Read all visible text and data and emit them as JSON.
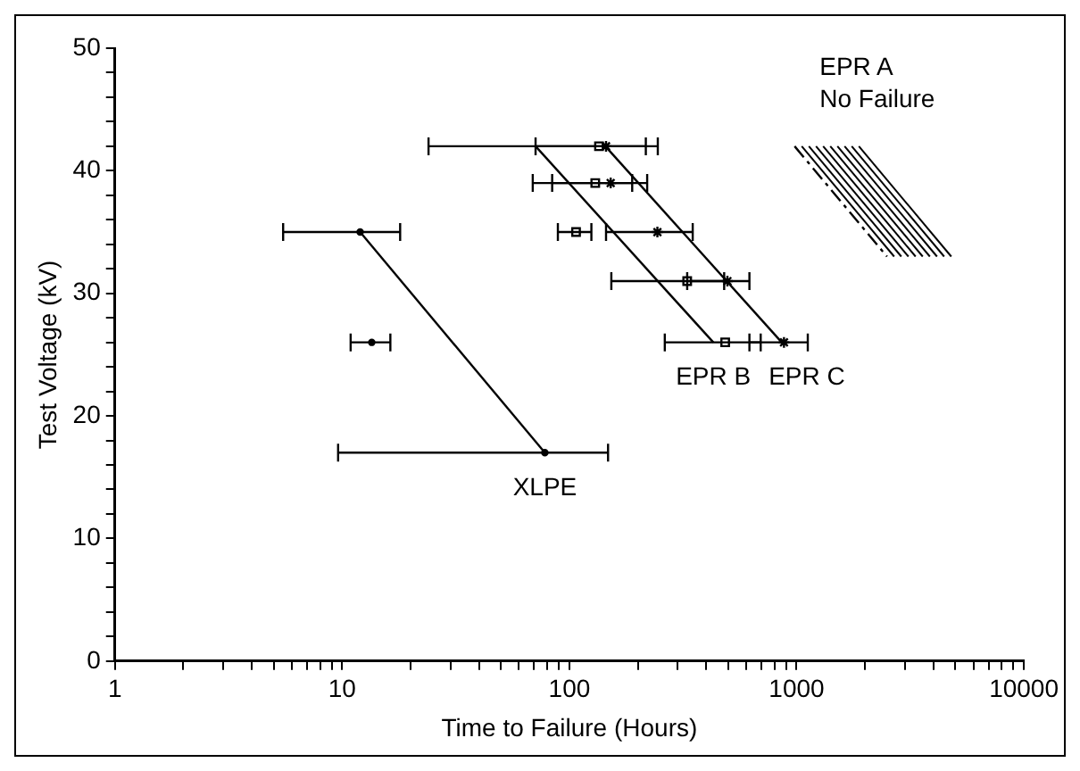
{
  "chart_data": {
    "type": "scatter",
    "xlabel": "Time to Failure (Hours)",
    "ylabel": "Test Voltage (kV)",
    "log": "x",
    "grid": false,
    "legend": false,
    "xlim": [
      1,
      10000
    ],
    "xticks": [
      1,
      {
        "value": 2,
        "label": null
      },
      {
        "value": 3,
        "label": null
      },
      {
        "value": 4,
        "label": null
      },
      {
        "value": 5,
        "label": null
      },
      {
        "value": 6,
        "label": null
      },
      {
        "value": 7,
        "label": null
      },
      {
        "value": 8,
        "label": null
      },
      {
        "value": 9,
        "label": null
      },
      10,
      {
        "value": 20,
        "label": null
      },
      {
        "value": 30,
        "label": null
      },
      {
        "value": 40,
        "label": null
      },
      {
        "value": 50,
        "label": null
      },
      {
        "value": 60,
        "label": null
      },
      {
        "value": 70,
        "label": null
      },
      {
        "value": 80,
        "label": null
      },
      {
        "value": 90,
        "label": null
      },
      100,
      {
        "value": 200,
        "label": null
      },
      {
        "value": 300,
        "label": null
      },
      {
        "value": 400,
        "label": null
      },
      {
        "value": 500,
        "label": null
      },
      {
        "value": 600,
        "label": null
      },
      {
        "value": 700,
        "label": null
      },
      {
        "value": 800,
        "label": null
      },
      {
        "value": 900,
        "label": null
      },
      1000,
      {
        "value": 2000,
        "label": null
      },
      {
        "value": 3000,
        "label": null
      },
      {
        "value": 4000,
        "label": null
      },
      {
        "value": 5000,
        "label": null
      },
      {
        "value": 6000,
        "label": null
      },
      {
        "value": 7000,
        "label": null
      },
      {
        "value": 8000,
        "label": null
      },
      {
        "value": 9000,
        "label": null
      },
      10000
    ],
    "ylim": [
      0,
      50
    ],
    "yticks": [
      0,
      {
        "value": 2,
        "label": null
      },
      {
        "value": 4,
        "label": null
      },
      {
        "value": 6,
        "label": null
      },
      {
        "value": 8,
        "label": null
      },
      10,
      {
        "value": 12,
        "label": null
      },
      {
        "value": 14,
        "label": null
      },
      {
        "value": 16,
        "label": null
      },
      {
        "value": 18,
        "label": null
      },
      20,
      {
        "value": 22,
        "label": null
      },
      {
        "value": 24,
        "label": null
      },
      {
        "value": 26,
        "label": null
      },
      {
        "value": 28,
        "label": null
      },
      30,
      {
        "value": 32,
        "label": null
      },
      {
        "value": 34,
        "label": null
      },
      {
        "value": 36,
        "label": null
      },
      {
        "value": 38,
        "label": null
      },
      40,
      {
        "value": 42,
        "label": null
      },
      {
        "value": 44,
        "label": null
      },
      {
        "value": 46,
        "label": null
      },
      {
        "value": 48,
        "label": null
      },
      50
    ],
    "series": [
      {
        "type": "line",
        "name": "XLPE",
        "color": "#000000",
        "marker": "circle",
        "x": [
          12,
          78
        ],
        "values": [
          35,
          17
        ],
        "xerrors": [
          [
            5.5,
            18
          ],
          [
            9.6,
            148
          ]
        ]
      },
      {
        "color": "#000000",
        "marker": "circle",
        "x": [
          13.5
        ],
        "values": [
          26
        ],
        "xerrors": [
          [
            10.9,
            16.3
          ]
        ]
      },
      {
        "color": "#000000",
        "marker": "square",
        "x": [
          135,
          130,
          107,
          330,
          485
        ],
        "values": [
          42,
          39,
          35,
          31,
          26
        ],
        "xerrors": [
          [
            24,
            217
          ],
          [
            69,
            189
          ],
          [
            89,
            125
          ],
          [
            153,
            480
          ],
          [
            263,
            695
          ]
        ]
      },
      {
        "color": "#000000",
        "marker": "cross",
        "x": [
          145,
          152,
          244,
          496,
          880
        ],
        "values": [
          42,
          39,
          35,
          31,
          26
        ],
        "xerrors": [
          [
            71,
            245
          ],
          [
            84,
            220
          ],
          [
            145,
            349
          ],
          [
            330,
            620
          ],
          [
            620,
            1120
          ]
        ]
      },
      {
        "type": "line",
        "name": "EPR B",
        "color": "#000000",
        "marker": "none",
        "x": [
          71,
          430
        ],
        "values": [
          42,
          26
        ]
      },
      {
        "type": "line",
        "name": "EPR C",
        "color": "#000000",
        "marker": "none",
        "x": [
          144,
          860
        ],
        "values": [
          42,
          26
        ]
      },
      {
        "type": "line",
        "name": "EPR A",
        "color": "#000000",
        "marker": "none",
        "line_style": "dashed",
        "x": [
          980,
          2500
        ],
        "values": [
          42,
          33
        ]
      }
    ],
    "annotations": [
      "No Failure"
    ]
  }
}
